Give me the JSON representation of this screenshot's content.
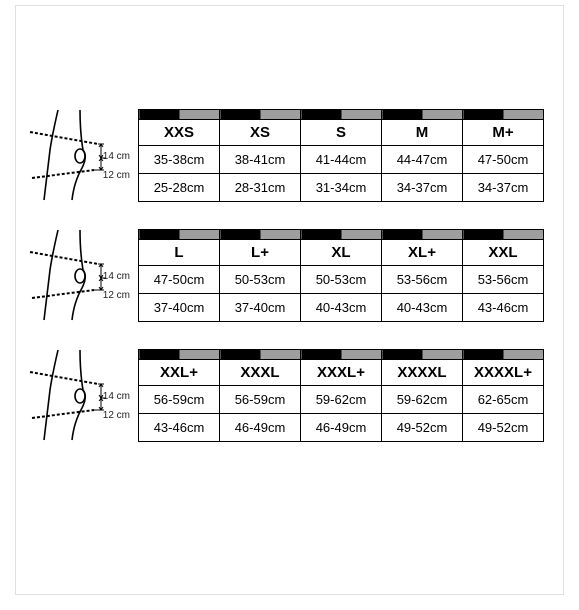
{
  "measurement_labels": {
    "upper": "14 cm",
    "lower": "12 cm"
  },
  "blocks": [
    {
      "sizes": [
        "XXS",
        "XS",
        "S",
        "M",
        "M+"
      ],
      "upper": [
        "35-38cm",
        "38-41cm",
        "41-44cm",
        "44-47cm",
        "47-50cm"
      ],
      "lower": [
        "25-28cm",
        "28-31cm",
        "31-34cm",
        "34-37cm",
        "34-37cm"
      ]
    },
    {
      "sizes": [
        "L",
        "L+",
        "XL",
        "XL+",
        "XXL"
      ],
      "upper": [
        "47-50cm",
        "50-53cm",
        "50-53cm",
        "53-56cm",
        "53-56cm"
      ],
      "lower": [
        "37-40cm",
        "37-40cm",
        "40-43cm",
        "40-43cm",
        "43-46cm"
      ]
    },
    {
      "sizes": [
        "XXL+",
        "XXXL",
        "XXXL+",
        "XXXXL",
        "XXXXL+"
      ],
      "upper": [
        "56-59cm",
        "56-59cm",
        "59-62cm",
        "59-62cm",
        "62-65cm"
      ],
      "lower": [
        "43-46cm",
        "46-49cm",
        "46-49cm",
        "49-52cm",
        "49-52cm"
      ]
    }
  ],
  "colors": {
    "border": "#000000",
    "bar_dark": "#000000",
    "bar_light": "#9e9e9e",
    "frame": "#e0e0e0",
    "background": "#ffffff"
  }
}
